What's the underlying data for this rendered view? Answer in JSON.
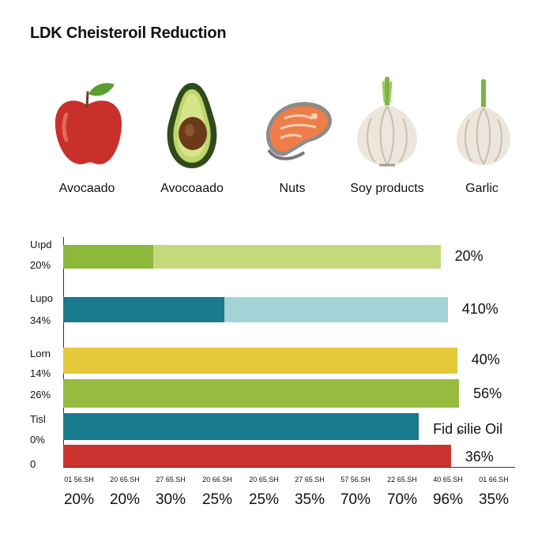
{
  "title": "LDK Cheisteroil Reduction",
  "foods": [
    {
      "label": "Avocaado",
      "icon": "apple-icon"
    },
    {
      "label": "Avocoaado",
      "icon": "avocado-icon"
    },
    {
      "label": "Nuts",
      "icon": "salmon-icon"
    },
    {
      "label": "Soy products",
      "icon": "garlic-icon"
    },
    {
      "label": "Garlic",
      "icon": "garlic-icon"
    }
  ],
  "chart_data": {
    "type": "bar",
    "orientation": "horizontal",
    "xlim": [
      0,
      100
    ],
    "grid": false,
    "rows": [
      {
        "label": "Uıpd",
        "sub_label": "20%",
        "value_label": "20%",
        "segments": [
          {
            "value": 20,
            "color": "#8cb83c"
          },
          {
            "value": 63.5,
            "color": "#c3d97c"
          }
        ]
      },
      {
        "label": "Lupo",
        "sub_label": "34%",
        "value_label": "410%",
        "segments": [
          {
            "value": 35.7,
            "color": "#1a7a8e"
          },
          {
            "value": 49.4,
            "color": "#a3d3d6"
          }
        ]
      },
      {
        "label": "Lorn",
        "sub_label": "14%",
        "value_label": "40%",
        "segments": [
          {
            "value": 87.2,
            "color": "#e6c83c"
          }
        ]
      },
      {
        "label": "",
        "sub_label": "26%",
        "value_label": "56%",
        "segments": [
          {
            "value": 87.6,
            "color": "#96bb40"
          }
        ]
      },
      {
        "label": "Tisl",
        "sub_label": "0%",
        "value_label": "Fid ɕilie Oil",
        "segments": [
          {
            "value": 78.7,
            "color": "#1a7a8e"
          }
        ]
      },
      {
        "label": "",
        "sub_label": "0",
        "value_label": "36%",
        "segments": [
          {
            "value": 85.8,
            "color": "#cc3330"
          }
        ]
      }
    ],
    "tick_small": [
      "01 56.SH",
      "20 65.SH",
      "27 65.SH",
      "20 66.SH",
      "20 65.SH",
      "27 65.SH",
      "57 56.SH",
      "22 65.SH",
      "40 65.SH",
      "01 66.SH"
    ],
    "tick_big": [
      "20%",
      "20%",
      "30%",
      "25%",
      "25%",
      "35%",
      "70%",
      "70%",
      "96%",
      "35%"
    ]
  }
}
